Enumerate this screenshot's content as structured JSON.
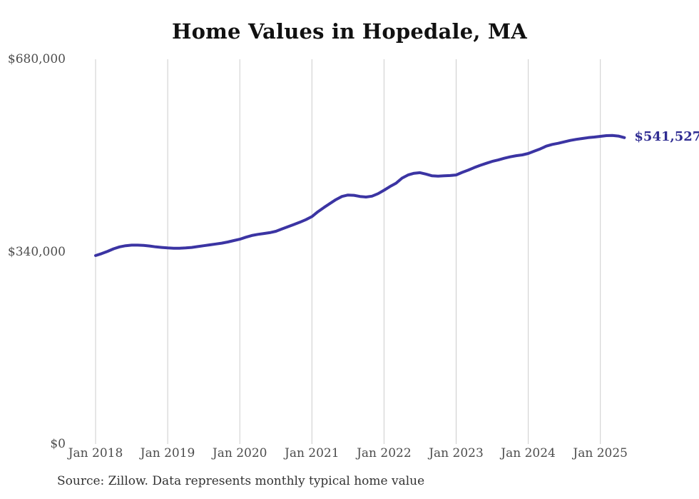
{
  "page": {
    "title": "Home Values in Hopedale, MA",
    "source_note": "Source: Zillow. Data represents monthly typical home value"
  },
  "chart_data": {
    "type": "line",
    "title": "Home Values in Hopedale, MA",
    "series_name": "Monthly typical home value",
    "frequency": "monthly",
    "x_start": "Jan 2018",
    "x_end": "May 2025",
    "x_tick_labels": [
      "Jan 2018",
      "Jan 2019",
      "Jan 2020",
      "Jan 2021",
      "Jan 2022",
      "Jan 2023",
      "Jan 2024",
      "Jan 2025"
    ],
    "y_tick_labels": [
      "$680,000",
      "$340,000",
      "$0"
    ],
    "y_tick_values": [
      680000,
      340000,
      0
    ],
    "ylim": [
      0,
      680000
    ],
    "grid": "vertical-year-gridlines-only",
    "legend": "none",
    "end_label": "$541,527",
    "end_value": 541527,
    "source": "Source: Zillow. Data represents monthly typical home value",
    "colors": {
      "line": "#3b34a3",
      "end_label": "#2f2c92",
      "gridline": "#cccccc",
      "title_text": "#111111",
      "tick_text": "#4d4d4d",
      "source_text": "#333333"
    },
    "values": [
      333000,
      336500,
      340500,
      345000,
      348500,
      350500,
      351500,
      351500,
      351000,
      350000,
      348500,
      347500,
      346500,
      346000,
      346000,
      346500,
      347500,
      349000,
      350500,
      352000,
      353500,
      355000,
      357000,
      359500,
      362000,
      365500,
      368500,
      370500,
      372000,
      373500,
      376000,
      380000,
      384000,
      388000,
      392000,
      396500,
      402000,
      410500,
      418000,
      425000,
      432000,
      437500,
      440000,
      439500,
      437500,
      436500,
      438000,
      442500,
      448500,
      455000,
      461000,
      470000,
      475500,
      478500,
      479500,
      477000,
      474000,
      473500,
      474000,
      474500,
      475500,
      480000,
      484000,
      488500,
      492500,
      496000,
      499500,
      502000,
      505000,
      507500,
      509500,
      511000,
      513500,
      517500,
      521500,
      526500,
      529500,
      531500,
      534000,
      536500,
      538500,
      540000,
      541500,
      542500,
      543800,
      545000,
      545300,
      544200,
      541527
    ]
  }
}
